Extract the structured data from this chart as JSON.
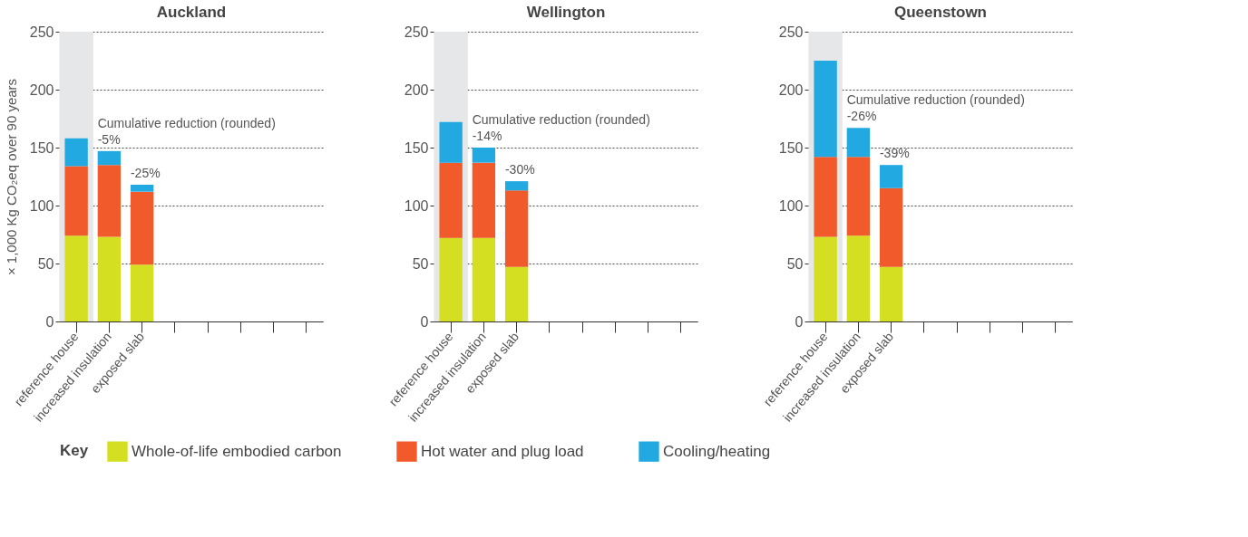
{
  "chart_data": [
    {
      "type": "bar",
      "title": "Auckland",
      "ylabel": "× 1,000 Kg CO₂eq over 90 years",
      "legend_title": "Key",
      "legend": "bottom",
      "stacked": true,
      "grid": "y",
      "categories": [
        "reference house",
        "increased insulation",
        "exposed slab",
        null,
        null,
        null,
        null,
        null
      ],
      "series": [
        {
          "name": "Whole-of-life embodied carbon",
          "color": "#d5df21",
          "values": [
            74,
            73,
            49,
            null,
            null,
            null,
            null,
            null
          ]
        },
        {
          "name": "Hot water and plug load",
          "color": "#f15a2b",
          "values": [
            60,
            62,
            63,
            null,
            null,
            null,
            null,
            null
          ]
        },
        {
          "name": "Cooling/heating",
          "color": "#23a9e1",
          "values": [
            24,
            12,
            6,
            null,
            null,
            null,
            null,
            null
          ]
        }
      ],
      "ylim": [
        0,
        250
      ],
      "yticks": [
        0,
        50,
        100,
        150,
        200,
        250
      ],
      "bands": [
        {
          "axis": "x",
          "from": "reference house",
          "to": "reference house",
          "color": "#e6e7e8"
        }
      ],
      "annotations": [
        "Cumulative reduction (rounded)",
        {
          "text": "-5%",
          "x": "increased insulation",
          "y": 147
        },
        {
          "text": "-25%",
          "x": "exposed slab",
          "y": 118
        }
      ]
    },
    {
      "type": "bar",
      "title": "Wellington",
      "stacked": true,
      "grid": "y",
      "categories": [
        "reference house",
        "increased insulation",
        "exposed slab",
        null,
        null,
        null,
        null,
        null
      ],
      "series": [
        {
          "color": "#d5df21",
          "values": [
            72,
            72,
            47,
            null,
            null,
            null,
            null,
            null
          ]
        },
        {
          "color": "#f15a2b",
          "values": [
            65,
            65,
            66,
            null,
            null,
            null,
            null,
            null
          ]
        },
        {
          "color": "#23a9e1",
          "values": [
            35,
            13,
            8,
            null,
            null,
            null,
            null,
            null
          ]
        }
      ],
      "ylim": [
        0,
        250
      ],
      "yticks": [
        0,
        50,
        100,
        150,
        200,
        250
      ],
      "bands": [
        {
          "axis": "x",
          "from": "reference house",
          "to": "reference house",
          "color": "#e6e7e8"
        }
      ],
      "annotations": [
        "Cumulative reduction (rounded)",
        {
          "text": "-14%",
          "x": "increased insulation",
          "y": 150
        },
        {
          "text": "-30%",
          "x": "exposed slab",
          "y": 121
        }
      ]
    },
    {
      "type": "bar",
      "title": "Queenstown",
      "stacked": true,
      "grid": "y",
      "categories": [
        "reference house",
        "increased insulation",
        "exposed slab",
        null,
        null,
        null,
        null,
        null
      ],
      "series": [
        {
          "color": "#d5df21",
          "values": [
            73,
            74,
            47,
            null,
            null,
            null,
            null,
            null
          ]
        },
        {
          "color": "#f15a2b",
          "values": [
            69,
            68,
            68,
            null,
            null,
            null,
            null,
            null
          ]
        },
        {
          "color": "#23a9e1",
          "values": [
            83,
            25,
            20,
            null,
            null,
            null,
            null,
            null
          ]
        }
      ],
      "ylim": [
        0,
        250
      ],
      "yticks": [
        0,
        50,
        100,
        150,
        200,
        250
      ],
      "bands": [
        {
          "axis": "x",
          "from": "reference house",
          "to": "reference house",
          "color": "#e6e7e8"
        }
      ],
      "annotations": [
        "Cumulative reduction (rounded)",
        {
          "text": "-26%",
          "x": "increased insulation",
          "y": 167
        },
        {
          "text": "-39%",
          "x": "exposed slab",
          "y": 135
        }
      ]
    }
  ]
}
